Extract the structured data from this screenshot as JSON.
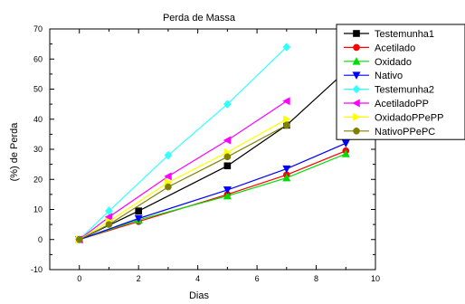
{
  "chart_data": {
    "type": "line",
    "title": "Perda de Massa",
    "xlabel": "Dias",
    "ylabel": "(%) de Perda",
    "xlim": [
      -1,
      10
    ],
    "ylim": [
      -10,
      70
    ],
    "xticks": [
      0,
      2,
      4,
      6,
      8,
      10
    ],
    "yticks": [
      -10,
      0,
      10,
      20,
      30,
      40,
      50,
      60,
      70
    ],
    "legend": "right",
    "series": [
      {
        "name": "Testemunha1",
        "color": "#000000",
        "marker": "square",
        "x": [
          0,
          2,
          5,
          7,
          9
        ],
        "y": [
          0,
          9.5,
          24.5,
          38,
          56
        ]
      },
      {
        "name": "Acetilado",
        "color": "#ff0000",
        "marker": "circle",
        "x": [
          0,
          2,
          5,
          7,
          9
        ],
        "y": [
          0,
          6,
          15,
          21.5,
          29.5
        ]
      },
      {
        "name": "Oxidado",
        "color": "#00dd00",
        "marker": "triangle-up",
        "x": [
          0,
          2,
          5,
          7,
          9
        ],
        "y": [
          0,
          6.5,
          14.5,
          20.5,
          28.5
        ]
      },
      {
        "name": "Nativo",
        "color": "#0000ff",
        "marker": "triangle-down",
        "x": [
          0,
          2,
          5,
          7,
          9
        ],
        "y": [
          0,
          7,
          16.5,
          23.5,
          32
        ]
      },
      {
        "name": "Testemunha2",
        "color": "#33ffff",
        "marker": "diamond",
        "x": [
          0,
          1,
          3,
          5,
          7
        ],
        "y": [
          0,
          9.5,
          28,
          45,
          64
        ]
      },
      {
        "name": "AcetiladoPP",
        "color": "#ff00ff",
        "marker": "triangle-left",
        "x": [
          0,
          1,
          3,
          5,
          7
        ],
        "y": [
          0,
          7.5,
          21,
          33,
          46
        ]
      },
      {
        "name": "OxidadoPPePP",
        "color": "#ffff00",
        "marker": "triangle-right",
        "x": [
          0,
          1,
          3,
          5,
          7
        ],
        "y": [
          0,
          6,
          19,
          29,
          40
        ]
      },
      {
        "name": "NativoPPePC",
        "color": "#808000",
        "marker": "circle",
        "x": [
          0,
          1,
          3,
          5,
          7
        ],
        "y": [
          0,
          5,
          17.5,
          27.5,
          38
        ]
      }
    ]
  }
}
